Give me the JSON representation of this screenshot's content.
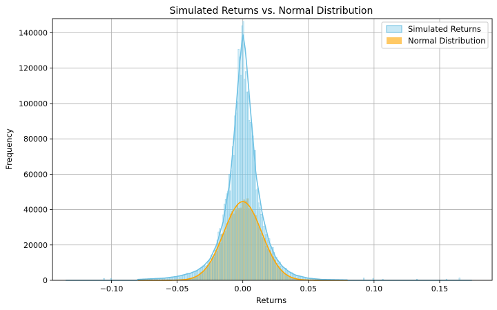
{
  "colors": {
    "simulated_fill": "#87ceeb",
    "simulated_edge": "#6cbfe0",
    "simulated_kde": "#6ec1e4",
    "normal_fill": "#ffb732",
    "normal_edge": "#c08a25",
    "normal_kde": "#ffa500",
    "grid": "#b0b0b0"
  },
  "chart_data": {
    "type": "histogram",
    "title": "Simulated Returns vs. Normal Distribution",
    "xlabel": "Returns",
    "ylabel": "Frequency",
    "xlim": [
      -0.145,
      0.19
    ],
    "ylim": [
      0,
      148000
    ],
    "xticks": [
      -0.1,
      -0.05,
      0.0,
      0.05,
      0.1,
      0.15
    ],
    "xtick_labels": [
      "−0.10",
      "−0.05",
      "0.00",
      "0.05",
      "0.10",
      "0.15"
    ],
    "yticks": [
      0,
      20000,
      40000,
      60000,
      80000,
      100000,
      120000,
      140000
    ],
    "ytick_labels": [
      "0",
      "20000",
      "40000",
      "60000",
      "80000",
      "100000",
      "120000",
      "140000"
    ],
    "grid": true,
    "legend_position": "top-right",
    "series": [
      {
        "name": "Simulated Returns",
        "kind": "histogram-with-kde",
        "x": [
          -0.08,
          -0.06,
          -0.05,
          -0.04,
          -0.035,
          -0.03,
          -0.025,
          -0.02,
          -0.015,
          -0.01,
          -0.008,
          -0.006,
          -0.004,
          -0.002,
          0.0,
          0.002,
          0.004,
          0.006,
          0.008,
          0.01,
          0.015,
          0.02,
          0.025,
          0.03,
          0.035,
          0.04,
          0.05,
          0.06,
          0.08
        ],
        "y": [
          500,
          1200,
          2200,
          4000,
          5500,
          8000,
          12000,
          20000,
          33000,
          55000,
          70000,
          88000,
          108000,
          125000,
          140000,
          130000,
          113000,
          95000,
          78000,
          60000,
          37000,
          22000,
          13000,
          8000,
          5000,
          3000,
          1200,
          500,
          200
        ]
      },
      {
        "name": "Normal Distribution",
        "kind": "histogram-with-kde",
        "mean": 0.0,
        "std": 0.0145,
        "peak": 44500
      }
    ]
  }
}
